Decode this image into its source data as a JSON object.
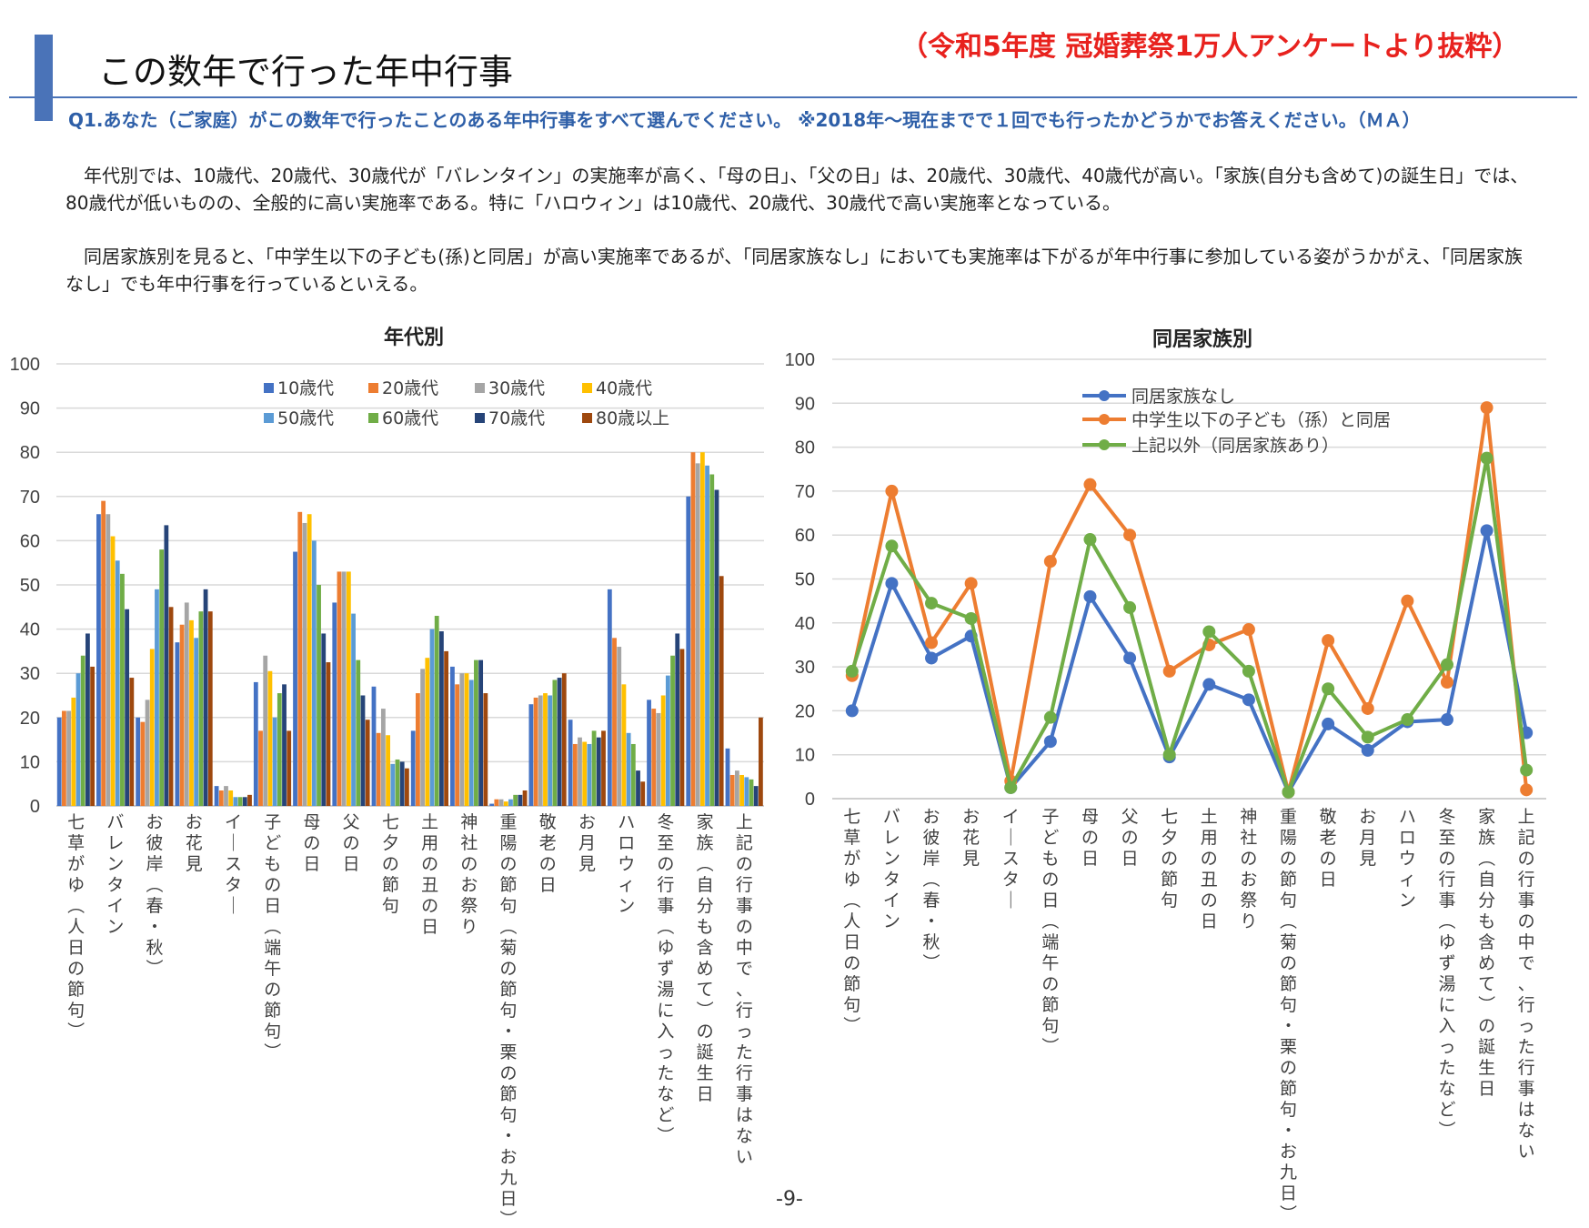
{
  "page": {
    "title": "この数年で行った年中行事",
    "source_note": "（令和5年度 冠婚葬祭1万人アンケートより抜粋）",
    "question": "Q1.あなた（ご家庭）がこの数年で行ったことのある年中行事をすべて選んでください。 ※2018年～現在までで１回でも行ったかどうかでお答えください。（ＭＡ）",
    "paragraph1": "年代別では、10歳代、20歳代、30歳代が「バレンタイン」の実施率が高く、「母の日」、「父の日」は、20歳代、30歳代、40歳代が高い。「家族(自分も含めて)の誕生日」では、80歳代が低いものの、全般的に高い実施率である。特に「ハロウィン」は10歳代、20歳代、30歳代で高い実施率となっている。",
    "paragraph2": "同居家族別を見ると、「中学生以下の子ども(孫)と同居」が高い実施率であるが、「同居家族なし」においても実施率は下がるが年中行事に参加している姿がうかがえ、「同居家族なし」でも年中行事を行っているといえる。",
    "page_number": "-9-"
  },
  "chart_data": [
    {
      "type": "bar",
      "title": "年代別",
      "xlabel": "",
      "ylabel": "",
      "ylim": [
        0,
        100
      ],
      "yticks": [
        0,
        10,
        20,
        30,
        40,
        50,
        60,
        70,
        80,
        90,
        100
      ],
      "grid": true,
      "legend_position": "top",
      "categories": [
        "七草がゆ（人日の節句）",
        "バレンタイン",
        "お彼岸（春・秋）",
        "お花見",
        "イースター",
        "子どもの日（端午の節句）",
        "母の日",
        "父の日",
        "七夕の節句",
        "土用の丑の日",
        "神社のお祭り",
        "重陽の節句（菊の節句・栗の節句・お九日）",
        "敬老の日",
        "お月見",
        "ハロウィン",
        "冬至の行事（ゆず湯に入ったなど）",
        "家族（自分も含めて）の誕生日",
        "上記の行事の中で、行った行事はない"
      ],
      "series": [
        {
          "name": "10歳代",
          "color": "#4472c4",
          "values": [
            20,
            66,
            20,
            37,
            4.5,
            28,
            57.5,
            46,
            27,
            17,
            31.5,
            0.5,
            23,
            19.5,
            49,
            24,
            70,
            13
          ]
        },
        {
          "name": "20歳代",
          "color": "#ed7d31",
          "values": [
            21.5,
            69,
            19,
            41,
            3.5,
            17,
            66.5,
            53,
            16.5,
            25.5,
            27.5,
            1.5,
            24.5,
            14,
            38,
            22,
            80,
            7
          ]
        },
        {
          "name": "30歳代",
          "color": "#a5a5a5",
          "values": [
            21.5,
            66,
            24,
            46,
            4.5,
            34,
            64,
            53,
            22,
            31,
            30,
            1.5,
            25,
            15.5,
            36,
            21,
            77.5,
            8
          ]
        },
        {
          "name": "40歳代",
          "color": "#ffc000",
          "values": [
            24.5,
            61,
            35.5,
            42,
            3.5,
            30.5,
            66,
            53,
            16,
            33.5,
            30,
            1,
            25.5,
            14.5,
            27.5,
            25,
            80,
            7
          ]
        },
        {
          "name": "50歳代",
          "color": "#5b9bd5",
          "values": [
            30,
            55.5,
            49,
            38,
            2,
            20,
            60,
            43.5,
            9.5,
            40,
            28.5,
            1.5,
            25,
            14,
            16.5,
            29.5,
            77,
            6.5
          ]
        },
        {
          "name": "60歳代",
          "color": "#70ad47",
          "values": [
            34,
            52.5,
            58,
            44,
            2,
            25.5,
            50,
            33,
            10.5,
            43,
            33,
            2.5,
            28.5,
            17,
            14,
            34,
            75,
            6
          ]
        },
        {
          "name": "70歳代",
          "color": "#264478",
          "values": [
            39,
            44.5,
            63.5,
            49,
            2,
            27.5,
            39,
            25,
            10,
            39.5,
            33,
            2.5,
            29,
            15.5,
            8,
            39,
            71.5,
            4.5
          ]
        },
        {
          "name": "80歳以上",
          "color": "#9e480e",
          "values": [
            31.5,
            29,
            45,
            44,
            2.5,
            17,
            32.5,
            19.5,
            8.5,
            35,
            25.5,
            3.5,
            30,
            17,
            5.5,
            35.5,
            52,
            20
          ]
        }
      ]
    },
    {
      "type": "line",
      "title": "同居家族別",
      "xlabel": "",
      "ylabel": "",
      "ylim": [
        0,
        100
      ],
      "yticks": [
        0,
        10,
        20,
        30,
        40,
        50,
        60,
        70,
        80,
        90,
        100
      ],
      "grid": true,
      "legend_position": "top-left",
      "categories": [
        "七草がゆ（人日の節句）",
        "バレンタイン",
        "お彼岸（春・秋）",
        "お花見",
        "イースター",
        "子どもの日（端午の節句）",
        "母の日",
        "父の日",
        "七夕の節句",
        "土用の丑の日",
        "神社のお祭り",
        "重陽の節句（菊の節句・栗の節句・お九日）",
        "敬老の日",
        "お月見",
        "ハロウィン",
        "冬至の行事（ゆず湯に入ったなど）",
        "家族（自分も含めて）の誕生日",
        "上記の行事の中で、行った行事はない"
      ],
      "series": [
        {
          "name": "同居家族なし",
          "color": "#4472c4",
          "values": [
            20,
            49,
            32,
            37,
            2.5,
            13,
            46,
            32,
            9.5,
            26,
            22.5,
            1.5,
            17,
            11,
            17.5,
            18,
            61,
            15
          ]
        },
        {
          "name": "中学生以下の子ども（孫）と同居",
          "color": "#ed7d31",
          "values": [
            28,
            70,
            35.5,
            49,
            4,
            54,
            71.5,
            60,
            29,
            35,
            38.5,
            1.5,
            36,
            20.5,
            45,
            26.5,
            89,
            2
          ]
        },
        {
          "name": "上記以外（同居家族あり）",
          "color": "#70ad47",
          "values": [
            29,
            57.5,
            44.5,
            41,
            2.5,
            18.5,
            59,
            43.5,
            10,
            38,
            29,
            1.5,
            25,
            14,
            18,
            30.5,
            77.5,
            6.5
          ]
        }
      ]
    }
  ]
}
